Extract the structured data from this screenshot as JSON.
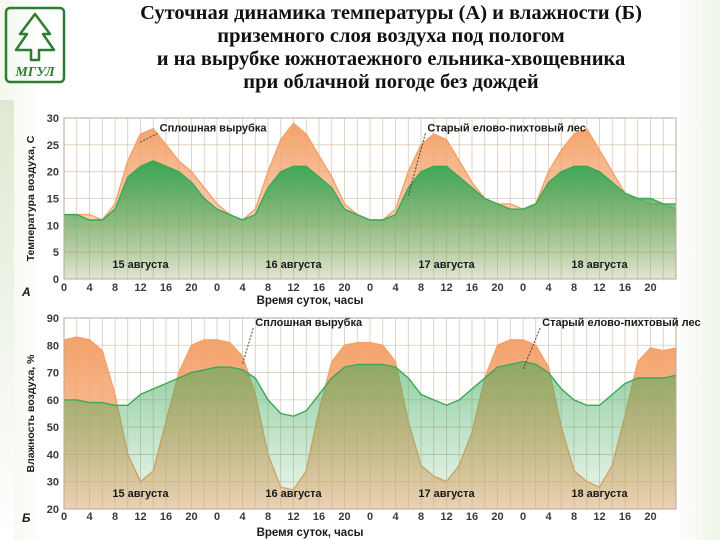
{
  "header": {
    "title_lines": [
      "Суточная динамика температуры (А) и влажности (Б)",
      "приземного слоя воздуха под пологом",
      "и на вырубке южнотаежного ельника-хвощевника",
      "при облачной погоде без дождей"
    ],
    "logo_text": "МГУЛ"
  },
  "colors": {
    "clearcut": "#f4a26a",
    "forest": "#3aa857",
    "grid": "#d9c9b8",
    "axis_text": "#3a3a3a"
  },
  "chart_data": [
    {
      "type": "area",
      "panel": "А",
      "xlabel": "Время суток, часы",
      "ylabel": "Температура воздуха, С",
      "ylim": [
        0,
        30
      ],
      "yticks": [
        0,
        5,
        10,
        15,
        20,
        25,
        30
      ],
      "xlim": [
        0,
        96
      ],
      "xtick_labels": [
        "0",
        "4",
        "8",
        "12",
        "16",
        "20",
        "0",
        "4",
        "8",
        "12",
        "16",
        "20",
        "0",
        "4",
        "8",
        "12",
        "16",
        "20",
        "0",
        "4",
        "8",
        "12",
        "16",
        "20"
      ],
      "day_labels": [
        "15 августа",
        "16 августа",
        "17 августа",
        "18 августа"
      ],
      "annotations": [
        {
          "text": "Сплошная вырубка",
          "x": 15,
          "y": 27.5,
          "series": "Сплошная вырубка"
        },
        {
          "text": "Старый елово-пихтовый лес",
          "x": 57,
          "y": 27.5,
          "series": "Старый елово-пихтовый лес"
        }
      ],
      "series": [
        {
          "name": "Сплошная вырубка",
          "color": "clearcut",
          "x": [
            0,
            2,
            4,
            6,
            8,
            10,
            12,
            14,
            16,
            18,
            20,
            22,
            24,
            26,
            28,
            30,
            32,
            34,
            36,
            38,
            40,
            42,
            44,
            46,
            48,
            50,
            52,
            54,
            56,
            58,
            60,
            62,
            64,
            66,
            68,
            70,
            72,
            74,
            76,
            78,
            80,
            82,
            84,
            86,
            88,
            90,
            92,
            94,
            96
          ],
          "y": [
            12,
            12,
            12,
            11,
            14,
            22,
            27,
            28,
            25,
            22,
            20,
            17,
            14,
            12,
            11,
            13,
            20,
            26,
            29,
            27,
            23,
            19,
            14,
            12,
            11,
            11,
            13,
            20,
            25,
            27,
            26,
            22,
            18,
            15,
            14,
            14,
            13,
            14,
            20,
            24,
            27,
            28,
            24,
            20,
            16,
            15,
            14,
            14,
            13
          ]
        },
        {
          "name": "Старый елово-пихтовый лес",
          "color": "forest",
          "x": [
            0,
            2,
            4,
            6,
            8,
            10,
            12,
            14,
            16,
            18,
            20,
            22,
            24,
            26,
            28,
            30,
            32,
            34,
            36,
            38,
            40,
            42,
            44,
            46,
            48,
            50,
            52,
            54,
            56,
            58,
            60,
            62,
            64,
            66,
            68,
            70,
            72,
            74,
            76,
            78,
            80,
            82,
            84,
            86,
            88,
            90,
            92,
            94,
            96
          ],
          "y": [
            12,
            12,
            11,
            11,
            13,
            19,
            21,
            22,
            21,
            20,
            18,
            15,
            13,
            12,
            11,
            12,
            17,
            20,
            21,
            21,
            19,
            17,
            13,
            12,
            11,
            11,
            12,
            17,
            20,
            21,
            21,
            19,
            17,
            15,
            14,
            13,
            13,
            14,
            18,
            20,
            21,
            21,
            20,
            18,
            16,
            15,
            15,
            14,
            14
          ]
        }
      ]
    },
    {
      "type": "area",
      "panel": "Б",
      "xlabel": "Время суток, часы",
      "ylabel": "Влажность воздуха, %",
      "ylim": [
        20,
        90
      ],
      "yticks": [
        20,
        30,
        40,
        50,
        60,
        70,
        80,
        90
      ],
      "xlim": [
        0,
        96
      ],
      "xtick_labels": [
        "0",
        "4",
        "8",
        "12",
        "16",
        "20",
        "0",
        "4",
        "8",
        "12",
        "16",
        "20",
        "0",
        "4",
        "8",
        "12",
        "16",
        "20",
        "0",
        "4",
        "8",
        "12",
        "16",
        "20"
      ],
      "day_labels": [
        "15 августа",
        "16 августа",
        "17 августа",
        "18 августа"
      ],
      "annotations": [
        {
          "text": "Сплошная вырубка",
          "x": 30,
          "y": 87,
          "series": "Сплошная вырубка"
        },
        {
          "text": "Старый елово-пихтовый лес",
          "x": 75,
          "y": 87,
          "series": "Старый елово-пихтовый лес"
        }
      ],
      "series": [
        {
          "name": "Сплошная вырубка",
          "color": "clearcut",
          "x": [
            0,
            2,
            4,
            6,
            8,
            10,
            12,
            14,
            16,
            18,
            20,
            22,
            24,
            26,
            28,
            30,
            32,
            34,
            36,
            38,
            40,
            42,
            44,
            46,
            48,
            50,
            52,
            54,
            56,
            58,
            60,
            62,
            64,
            66,
            68,
            70,
            72,
            74,
            76,
            78,
            80,
            82,
            84,
            86,
            88,
            90,
            92,
            94,
            96
          ],
          "y": [
            82,
            83,
            82,
            78,
            62,
            40,
            30,
            34,
            52,
            70,
            80,
            82,
            82,
            81,
            76,
            62,
            40,
            28,
            27,
            34,
            56,
            74,
            80,
            81,
            81,
            80,
            74,
            52,
            36,
            32,
            30,
            36,
            48,
            68,
            80,
            82,
            82,
            80,
            72,
            50,
            34,
            30,
            28,
            36,
            54,
            74,
            79,
            78,
            79
          ]
        },
        {
          "name": "Старый елово-пихтовый лес",
          "color": "forest",
          "x": [
            0,
            2,
            4,
            6,
            8,
            10,
            12,
            14,
            16,
            18,
            20,
            22,
            24,
            26,
            28,
            30,
            32,
            34,
            36,
            38,
            40,
            42,
            44,
            46,
            48,
            50,
            52,
            54,
            56,
            58,
            60,
            62,
            64,
            66,
            68,
            70,
            72,
            74,
            76,
            78,
            80,
            82,
            84,
            86,
            88,
            90,
            92,
            94,
            96
          ],
          "y": [
            60,
            60,
            59,
            59,
            58,
            58,
            62,
            64,
            66,
            68,
            70,
            71,
            72,
            72,
            71,
            68,
            60,
            55,
            54,
            56,
            62,
            68,
            72,
            73,
            73,
            73,
            72,
            68,
            62,
            60,
            58,
            60,
            64,
            68,
            72,
            73,
            74,
            73,
            70,
            64,
            60,
            58,
            58,
            62,
            66,
            68,
            68,
            68,
            69
          ]
        }
      ]
    }
  ]
}
